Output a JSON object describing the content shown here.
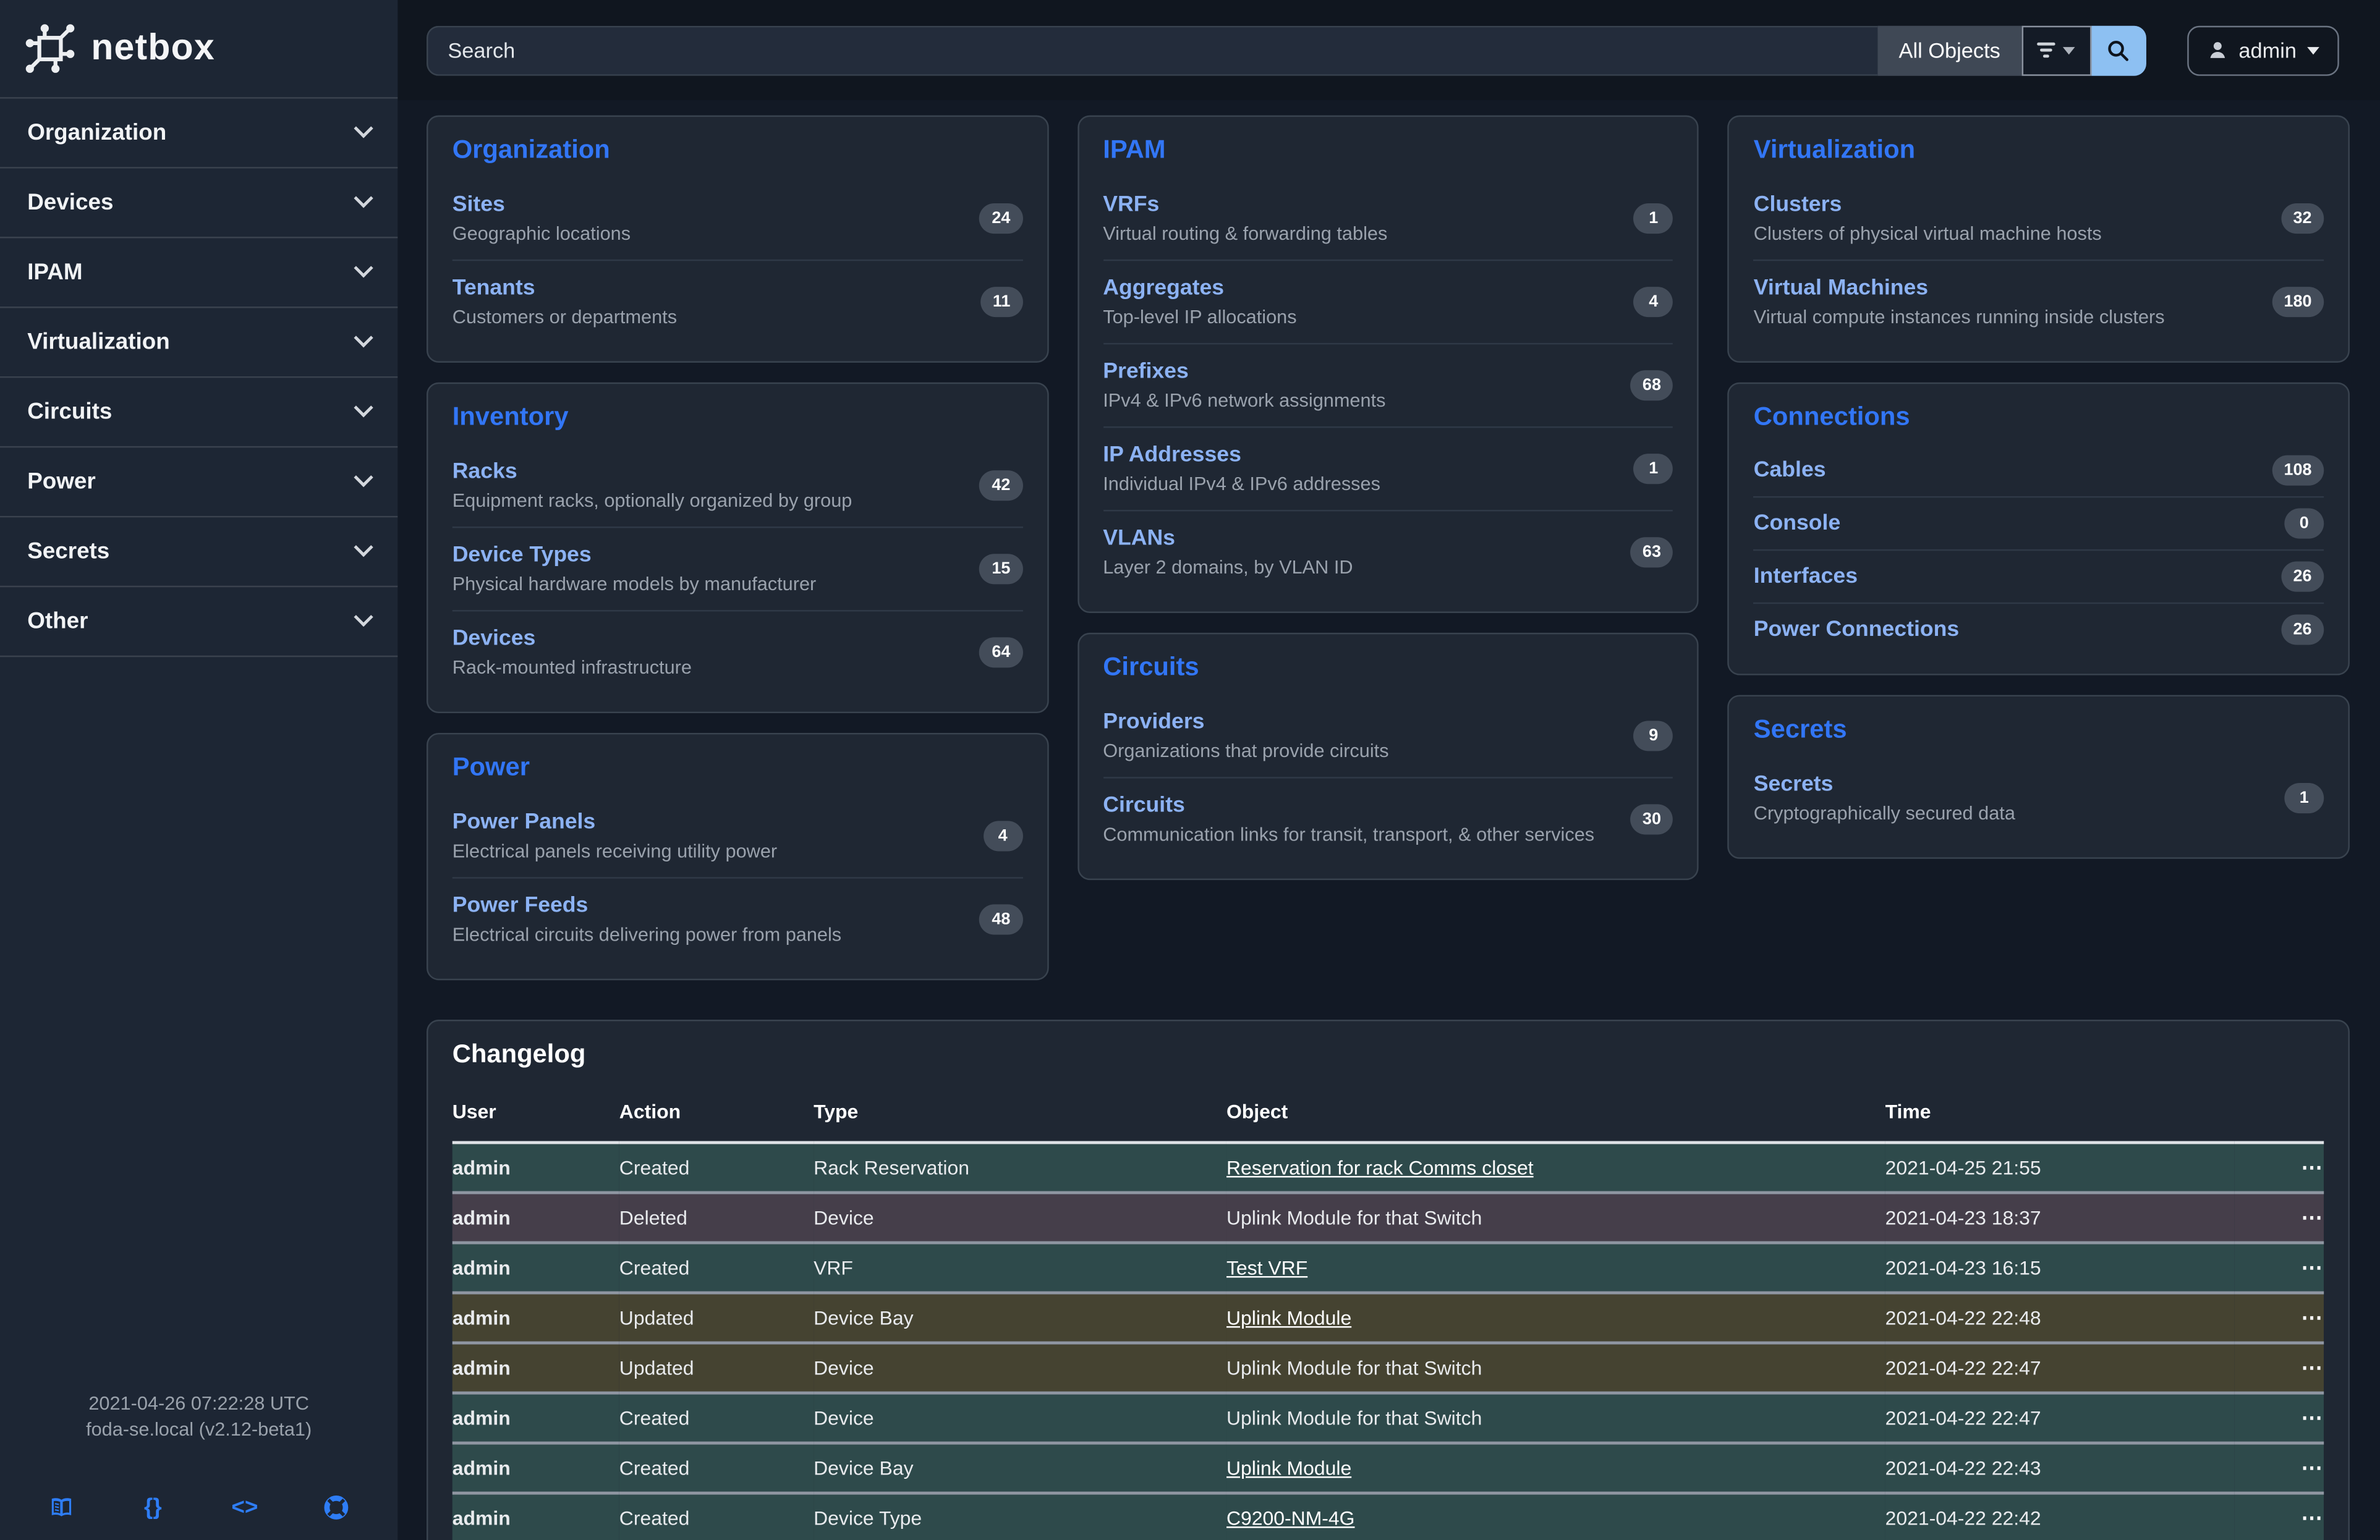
{
  "sidebar": {
    "logo_text": "netbox",
    "items": [
      {
        "label": "Organization"
      },
      {
        "label": "Devices"
      },
      {
        "label": "IPAM"
      },
      {
        "label": "Virtualization"
      },
      {
        "label": "Circuits"
      },
      {
        "label": "Power"
      },
      {
        "label": "Secrets"
      },
      {
        "label": "Other"
      }
    ],
    "footer": {
      "timestamp": "2021-04-26 07:22:28 UTC",
      "host": "foda-se.local (v2.12-beta1)",
      "icons": [
        "docs-icon",
        "api-icon",
        "code-icon",
        "support-icon"
      ]
    }
  },
  "topbar": {
    "search_placeholder": "Search",
    "scope_label": "All Objects",
    "user_label": "admin"
  },
  "cards": {
    "columns": [
      [
        {
          "title": "Organization",
          "items": [
            {
              "label": "Sites",
              "desc": "Geographic locations",
              "count": "24"
            },
            {
              "label": "Tenants",
              "desc": "Customers or departments",
              "count": "11"
            }
          ]
        },
        {
          "title": "Inventory",
          "items": [
            {
              "label": "Racks",
              "desc": "Equipment racks, optionally organized by group",
              "count": "42"
            },
            {
              "label": "Device Types",
              "desc": "Physical hardware models by manufacturer",
              "count": "15"
            },
            {
              "label": "Devices",
              "desc": "Rack-mounted infrastructure",
              "count": "64"
            }
          ]
        },
        {
          "title": "Power",
          "items": [
            {
              "label": "Power Panels",
              "desc": "Electrical panels receiving utility power",
              "count": "4"
            },
            {
              "label": "Power Feeds",
              "desc": "Electrical circuits delivering power from panels",
              "count": "48"
            }
          ]
        }
      ],
      [
        {
          "title": "IPAM",
          "items": [
            {
              "label": "VRFs",
              "desc": "Virtual routing & forwarding tables",
              "count": "1"
            },
            {
              "label": "Aggregates",
              "desc": "Top-level IP allocations",
              "count": "4"
            },
            {
              "label": "Prefixes",
              "desc": "IPv4 & IPv6 network assignments",
              "count": "68"
            },
            {
              "label": "IP Addresses",
              "desc": "Individual IPv4 & IPv6 addresses",
              "count": "1"
            },
            {
              "label": "VLANs",
              "desc": "Layer 2 domains, by VLAN ID",
              "count": "63"
            }
          ]
        },
        {
          "title": "Circuits",
          "items": [
            {
              "label": "Providers",
              "desc": "Organizations that provide circuits",
              "count": "9"
            },
            {
              "label": "Circuits",
              "desc": "Communication links for transit, transport, & other services",
              "count": "30"
            }
          ]
        }
      ],
      [
        {
          "title": "Virtualization",
          "items": [
            {
              "label": "Clusters",
              "desc": "Clusters of physical virtual machine hosts",
              "count": "32"
            },
            {
              "label": "Virtual Machines",
              "desc": "Virtual compute instances running inside clusters",
              "count": "180"
            }
          ]
        },
        {
          "title": "Connections",
          "items": [
            {
              "label": "Cables",
              "desc": "",
              "count": "108"
            },
            {
              "label": "Console",
              "desc": "",
              "count": "0"
            },
            {
              "label": "Interfaces",
              "desc": "",
              "count": "26"
            },
            {
              "label": "Power Connections",
              "desc": "",
              "count": "26"
            }
          ]
        },
        {
          "title": "Secrets",
          "items": [
            {
              "label": "Secrets",
              "desc": "Cryptographically secured data",
              "count": "1"
            }
          ]
        }
      ]
    ]
  },
  "changelog": {
    "title": "Changelog",
    "headers": [
      "User",
      "Action",
      "Type",
      "Object",
      "Time"
    ],
    "rows": [
      {
        "user": "admin",
        "action": "Created",
        "type": "Rack Reservation",
        "object": "Reservation for rack Comms closet",
        "link": true,
        "time": "2021-04-25 21:55"
      },
      {
        "user": "admin",
        "action": "Deleted",
        "type": "Device",
        "object": "Uplink Module for that Switch",
        "link": false,
        "time": "2021-04-23 18:37"
      },
      {
        "user": "admin",
        "action": "Created",
        "type": "VRF",
        "object": "Test VRF",
        "link": true,
        "time": "2021-04-23 16:15"
      },
      {
        "user": "admin",
        "action": "Updated",
        "type": "Device Bay",
        "object": "Uplink Module",
        "link": true,
        "time": "2021-04-22 22:48"
      },
      {
        "user": "admin",
        "action": "Updated",
        "type": "Device",
        "object": "Uplink Module for that Switch",
        "link": false,
        "time": "2021-04-22 22:47"
      },
      {
        "user": "admin",
        "action": "Created",
        "type": "Device",
        "object": "Uplink Module for that Switch",
        "link": false,
        "time": "2021-04-22 22:47"
      },
      {
        "user": "admin",
        "action": "Created",
        "type": "Device Bay",
        "object": "Uplink Module",
        "link": true,
        "time": "2021-04-22 22:43"
      },
      {
        "user": "admin",
        "action": "Created",
        "type": "Device Type",
        "object": "C9200-NM-4G",
        "link": true,
        "time": "2021-04-22 22:42"
      }
    ],
    "partial_row": {
      "visible": true,
      "action": "Created"
    },
    "row_menu_glyph": "⋯"
  },
  "colors": {
    "accent_blue": "#3276f6",
    "link_blue": "#8cb2f3",
    "search_button_blue": "#8dc0f2",
    "footer_icon_blue": "#2e7df6",
    "row_created": "#2e4a4b",
    "row_deleted": "#453e4a",
    "row_updated": "#454331"
  },
  "icons": {
    "braces_glyph": "{}",
    "code_glyph": "<>"
  }
}
